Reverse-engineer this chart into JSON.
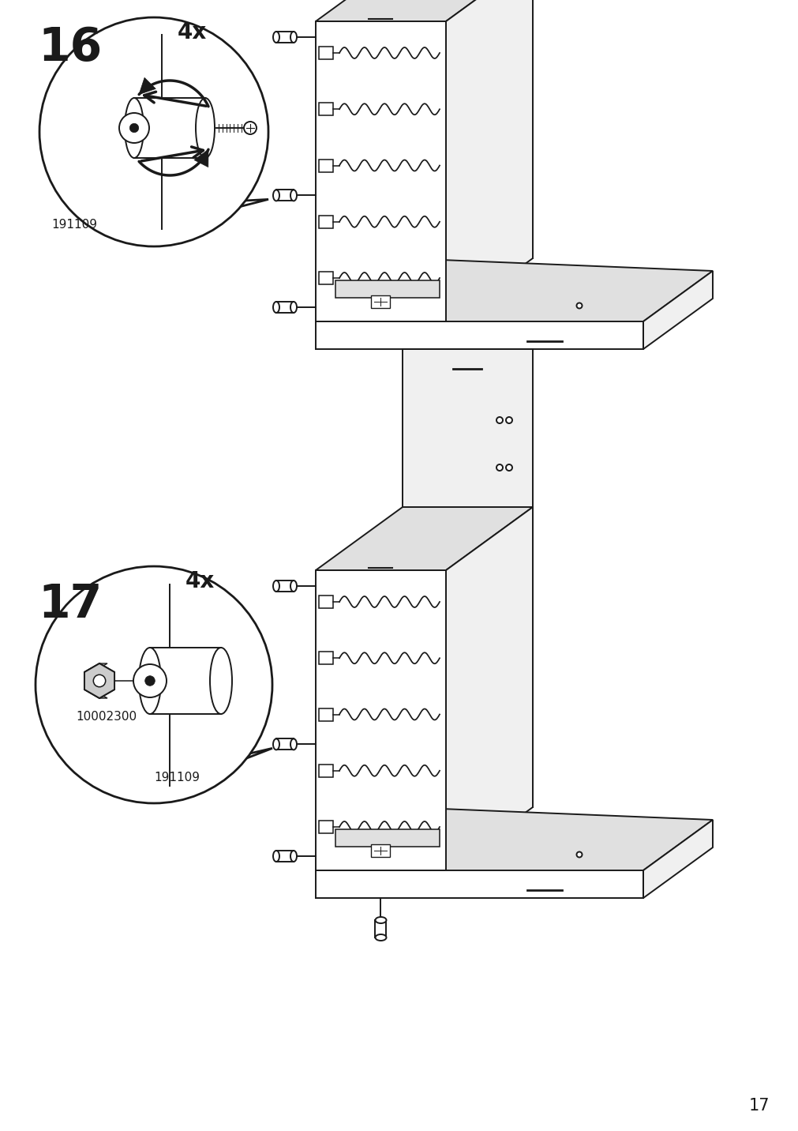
{
  "page_number": "17",
  "step16_label": "16",
  "step17_label": "17",
  "step16_4x": "4x",
  "step17_4x": "4x",
  "part_code_16": "191109",
  "part_code_17a": "10002300",
  "part_code_17b": "191109",
  "bg_color": "#ffffff",
  "line_color": "#1a1a1a",
  "fill_light": "#f0f0f0",
  "fill_mid": "#e0e0e0",
  "fill_dark": "#cccccc",
  "fill_hex": "#aaaaaa",
  "step_label_fontsize": 42,
  "count_fontsize": 20,
  "code_fontsize": 11,
  "page_num_fontsize": 15,
  "lw_main": 1.4,
  "lw_thick": 2.0,
  "lw_thin": 1.0
}
